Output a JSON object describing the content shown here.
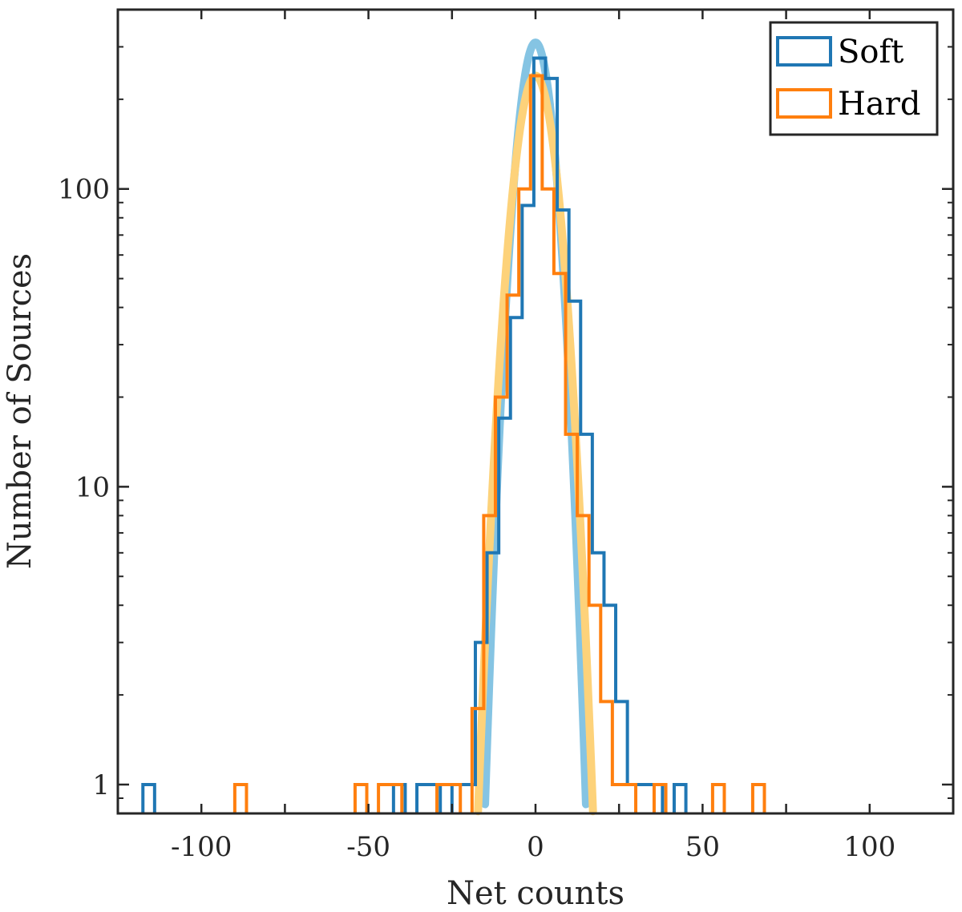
{
  "chart_data": {
    "type": "histogram",
    "title": "",
    "xlabel": "Net counts",
    "ylabel": "Number of Sources",
    "xlim": [
      -125,
      125
    ],
    "ylim": [
      0.8,
      400
    ],
    "yscale": "log",
    "grid": false,
    "legend_position": "top-right",
    "xticks": [
      -100,
      -50,
      0,
      50,
      100
    ],
    "xtick_labels": [
      "-100",
      "-50",
      "0",
      "50",
      "100"
    ],
    "yticks": [
      1,
      10,
      100
    ],
    "ytick_labels": [
      "1",
      "10",
      "100"
    ],
    "bin_width": 3.5,
    "colors": {
      "soft": "#1f77b4",
      "hard": "#ff7f0e",
      "soft_fit": "#85c4e3",
      "hard_fit": "#fdd27a",
      "axis": "#262626"
    },
    "series": [
      {
        "name": "Soft",
        "bins": [
          {
            "x0": -117.5,
            "x1": -114,
            "y": 1
          },
          {
            "x0": -42.5,
            "x1": -39,
            "y": 1
          },
          {
            "x0": -35.5,
            "x1": -32,
            "y": 1
          },
          {
            "x0": -32,
            "x1": -28.5,
            "y": 1
          },
          {
            "x0": -25,
            "x1": -21.5,
            "y": 1
          },
          {
            "x0": -21.5,
            "x1": -18,
            "y": 1
          },
          {
            "x0": -18,
            "x1": -14.5,
            "y": 3
          },
          {
            "x0": -14.5,
            "x1": -11,
            "y": 6
          },
          {
            "x0": -11,
            "x1": -7.5,
            "y": 17
          },
          {
            "x0": -7.5,
            "x1": -4,
            "y": 37
          },
          {
            "x0": -4,
            "x1": -0.5,
            "y": 88
          },
          {
            "x0": -0.5,
            "x1": 3,
            "y": 275
          },
          {
            "x0": 3,
            "x1": 6.5,
            "y": 235
          },
          {
            "x0": 6.5,
            "x1": 10,
            "y": 85
          },
          {
            "x0": 10,
            "x1": 13.5,
            "y": 42
          },
          {
            "x0": 13.5,
            "x1": 17,
            "y": 15
          },
          {
            "x0": 17,
            "x1": 20.5,
            "y": 6
          },
          {
            "x0": 20.5,
            "x1": 24,
            "y": 4
          },
          {
            "x0": 24,
            "x1": 27.5,
            "y": 1.9
          },
          {
            "x0": 27.5,
            "x1": 31,
            "y": 1
          },
          {
            "x0": 31,
            "x1": 34.5,
            "y": 1
          },
          {
            "x0": 34.5,
            "x1": 38,
            "y": 1
          },
          {
            "x0": 41.5,
            "x1": 45,
            "y": 1
          }
        ]
      },
      {
        "name": "Hard",
        "bins": [
          {
            "x0": -90,
            "x1": -86.5,
            "y": 1
          },
          {
            "x0": -54,
            "x1": -50.5,
            "y": 1
          },
          {
            "x0": -47,
            "x1": -43.5,
            "y": 1
          },
          {
            "x0": -43.5,
            "x1": -40,
            "y": 1
          },
          {
            "x0": -29.5,
            "x1": -26,
            "y": 1
          },
          {
            "x0": -26,
            "x1": -22.5,
            "y": 1
          },
          {
            "x0": -19,
            "x1": -15.5,
            "y": 1.8
          },
          {
            "x0": -15.5,
            "x1": -12,
            "y": 8
          },
          {
            "x0": -12,
            "x1": -8.5,
            "y": 20
          },
          {
            "x0": -8.5,
            "x1": -5,
            "y": 44
          },
          {
            "x0": -5,
            "x1": -1.5,
            "y": 100
          },
          {
            "x0": -1.5,
            "x1": 2,
            "y": 240
          },
          {
            "x0": 2,
            "x1": 5.5,
            "y": 100
          },
          {
            "x0": 5.5,
            "x1": 9,
            "y": 52
          },
          {
            "x0": 9,
            "x1": 12.5,
            "y": 15
          },
          {
            "x0": 12.5,
            "x1": 16,
            "y": 8
          },
          {
            "x0": 16,
            "x1": 19.5,
            "y": 4
          },
          {
            "x0": 19.5,
            "x1": 23,
            "y": 1.9
          },
          {
            "x0": 23,
            "x1": 26.5,
            "y": 1
          },
          {
            "x0": 26.5,
            "x1": 30,
            "y": 1
          },
          {
            "x0": 35.5,
            "x1": 39,
            "y": 1
          },
          {
            "x0": 53,
            "x1": 56.5,
            "y": 1
          },
          {
            "x0": 65,
            "x1": 68.5,
            "y": 1
          }
        ]
      }
    ],
    "fits": [
      {
        "name": "Soft fit",
        "type": "gaussian",
        "amplitude": 310,
        "mean": 0,
        "sigma": 4.4
      },
      {
        "name": "Hard fit",
        "type": "gaussian",
        "amplitude": 240,
        "mean": 0,
        "sigma": 5.1
      }
    ]
  }
}
